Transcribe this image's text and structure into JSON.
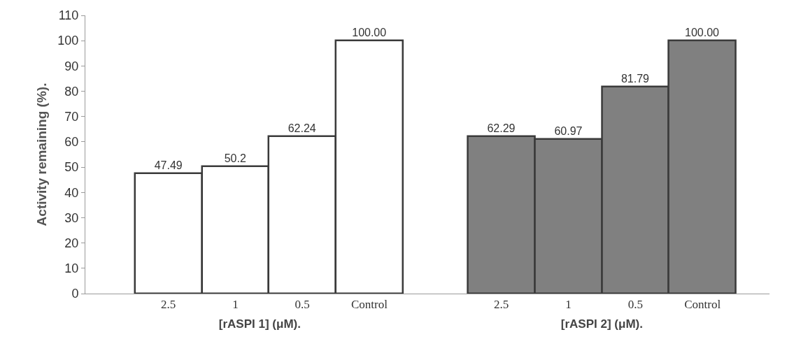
{
  "chart_data": [
    {
      "type": "bar",
      "ylabel": "Activity remaining (%).",
      "xlabel": "[rASPI 1] (μM).",
      "categories": [
        "2.5",
        "1",
        "0.5",
        "Control"
      ],
      "series": [
        {
          "color": "#ffffff",
          "values": [
            47.49,
            50.2,
            62.24,
            100
          ],
          "value_labels": [
            "47.49",
            "50.2",
            "62.24",
            "100.00"
          ]
        }
      ],
      "ylim": [
        0,
        110
      ],
      "yticks": [
        0,
        10,
        20,
        30,
        40,
        50,
        60,
        70,
        80,
        90,
        100,
        110
      ]
    },
    {
      "type": "bar",
      "xlabel": "[rASPI 2] (μM).",
      "categories": [
        "2.5",
        "1",
        "0.5",
        "Control"
      ],
      "series": [
        {
          "color": "#808080",
          "values": [
            62.29,
            60.97,
            81.79,
            100
          ],
          "value_labels": [
            "62.29",
            "60.97",
            "81.79",
            "100.00"
          ]
        }
      ],
      "ylim": [
        0,
        110
      ],
      "yticks": [
        0,
        10,
        20,
        30,
        40,
        50,
        60,
        70,
        80,
        90,
        100,
        110
      ],
      "tick_labels": "x"
    }
  ]
}
